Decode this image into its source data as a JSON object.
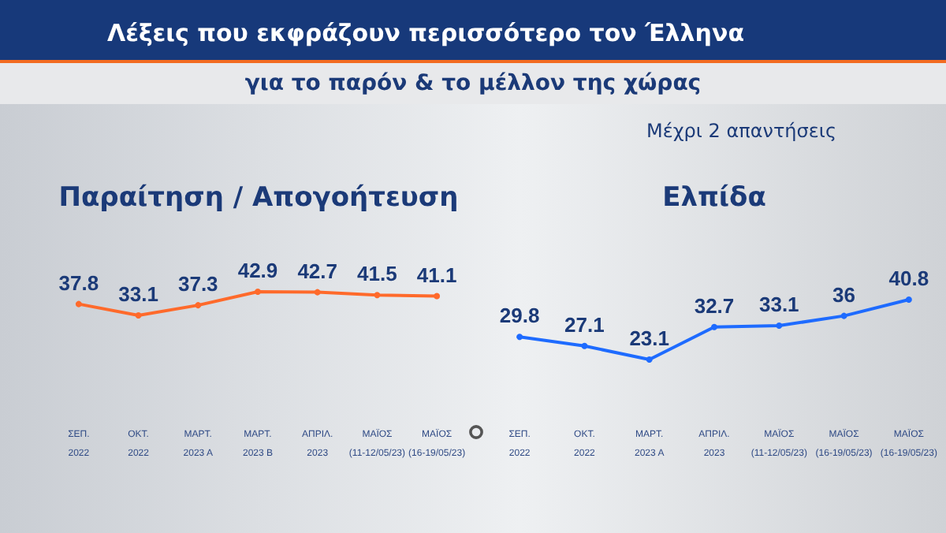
{
  "chart_data": [
    {
      "type": "other",
      "title": "Λέξεις που εκφράζουν περισσότερο τον Έλληνα",
      "subtitle": "για το παρόν & το μέλλον της χώρας",
      "annotations": [
        "Μέχρι 2 απαντήσεις"
      ]
    },
    {
      "type": "line",
      "title": "Παραίτηση / Απογοήτευση",
      "categories": [
        "ΣΕΠ.\n2022",
        "ΟΚΤ.\n2022",
        "ΜΑΡΤ.\n2023 Α",
        "ΜΑΡΤ.\n2023 Β",
        "ΑΠΡΙΛ.\n2023",
        "ΜΑΪΟΣ\n(11-12/05/23)",
        "ΜΑΪΟΣ\n(16-19/05/23)"
      ],
      "series": [
        {
          "color": "#ff6a2b",
          "values": [
            37.8,
            33.1,
            37.3,
            42.9,
            42.7,
            41.5,
            41.1
          ]
        }
      ],
      "data_labels": true,
      "marker": "circle"
    },
    {
      "type": "line",
      "title": "Ελπίδα",
      "categories": [
        "ΣΕΠ.\n2022",
        "ΟΚΤ.\n2022",
        "ΜΑΡΤ.\n2023 Α",
        "ΑΠΡΙΛ.\n2023",
        "ΜΑΪΟΣ\n(11-12/05/23)",
        "ΜΑΪΟΣ\n(16-19/05/23)",
        "ΜΑΪΟΣ\n(16-19/05/23)"
      ],
      "series": [
        {
          "color": "#1e6bff",
          "values": [
            29.8,
            27.1,
            23.1,
            32.7,
            33.1,
            36,
            40.8
          ]
        }
      ],
      "data_labels": true,
      "marker": "circle"
    }
  ]
}
